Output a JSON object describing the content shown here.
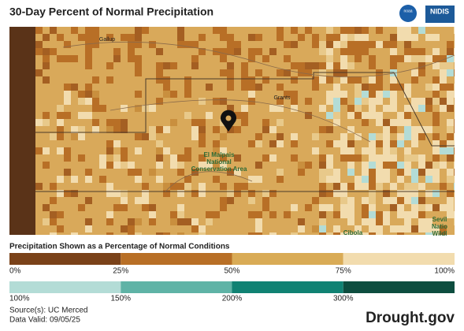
{
  "header": {
    "title": "30-Day Percent of Normal Precipitation",
    "logos": [
      "noaa",
      "NIDIS"
    ]
  },
  "map": {
    "labels": [
      "Gallup",
      "Grants",
      "El Malpais",
      "National",
      "Conservation Area",
      "Sevil",
      "Natio",
      "Wildl",
      "Cibola"
    ]
  },
  "legend": {
    "title": "Precipitation Shown as a Percentage of Normal Conditions",
    "dry_ticks": [
      "0%",
      "25%",
      "50%",
      "75%",
      "100%"
    ],
    "wet_ticks": [
      "100%",
      "150%",
      "200%",
      "300%"
    ]
  },
  "footer": {
    "source": "Source(s): UC Merced",
    "valid": "Data Valid: 09/05/25",
    "brand": "Drought.gov"
  }
}
